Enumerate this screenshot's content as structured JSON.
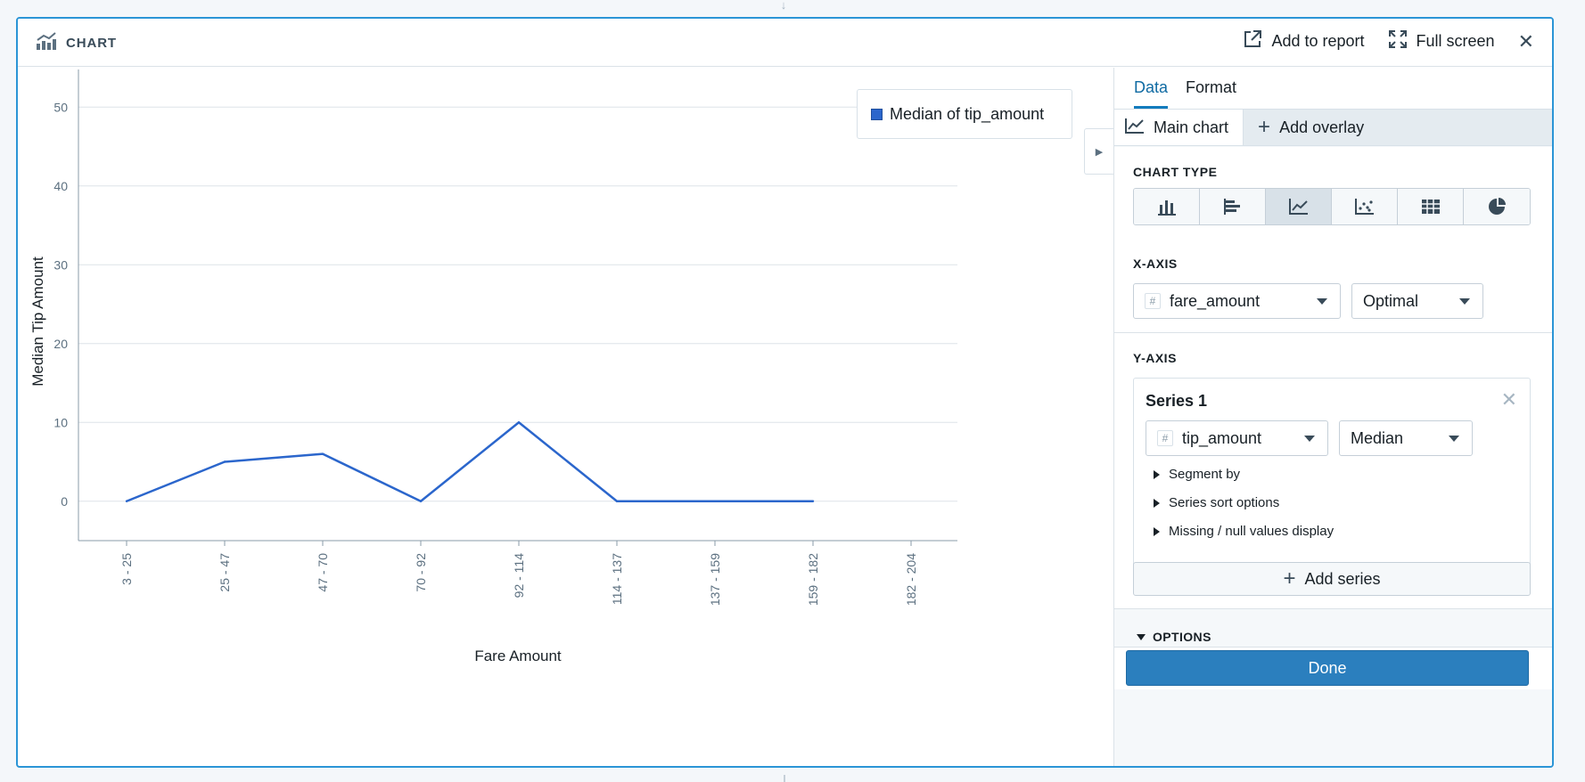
{
  "header": {
    "title": "CHART",
    "add_to_report": "Add to report",
    "full_screen": "Full screen"
  },
  "legend": {
    "label": "Median of tip_amount"
  },
  "sidebar": {
    "tabs": [
      "Data",
      "Format"
    ],
    "subtabs": {
      "main": "Main chart",
      "overlay": "Add overlay"
    },
    "chart_type": {
      "title": "CHART TYPE",
      "options": [
        "bar-chart-icon",
        "horizontal-bar-chart-icon",
        "line-chart-icon",
        "scatter-plot-icon",
        "table-grid-icon",
        "pie-chart-icon"
      ],
      "selected": "line-chart-icon"
    },
    "x_axis": {
      "title": "X-AXIS",
      "column": "fare_amount",
      "binning": "Optimal"
    },
    "y_axis": {
      "title": "Y-AXIS",
      "series_title": "Series 1",
      "column": "tip_amount",
      "aggregation": "Median",
      "expanders": [
        "Segment by",
        "Series sort options",
        "Missing / null values display"
      ],
      "add_series": "Add series"
    },
    "options_label": "OPTIONS",
    "done": "Done"
  },
  "colors": {
    "accent": "#137cbd",
    "line": "#2b66cc",
    "done": "#2b7fbe"
  },
  "chart_data": {
    "type": "line",
    "xlabel": "Fare Amount",
    "ylabel": "Median Tip Amount",
    "categories": [
      "3 - 25",
      "25 - 47",
      "47 - 70",
      "70 - 92",
      "92 - 114",
      "114 - 137",
      "137 - 159",
      "159 - 182",
      "182 - 204"
    ],
    "series": [
      {
        "name": "Median of tip_amount",
        "values": [
          0,
          5,
          6,
          0,
          10,
          0,
          0,
          0,
          null
        ]
      }
    ],
    "yticks": [
      0,
      10,
      20,
      30,
      40,
      50
    ],
    "ylim": [
      -5,
      55
    ],
    "grid": true,
    "legend": "top-right"
  }
}
